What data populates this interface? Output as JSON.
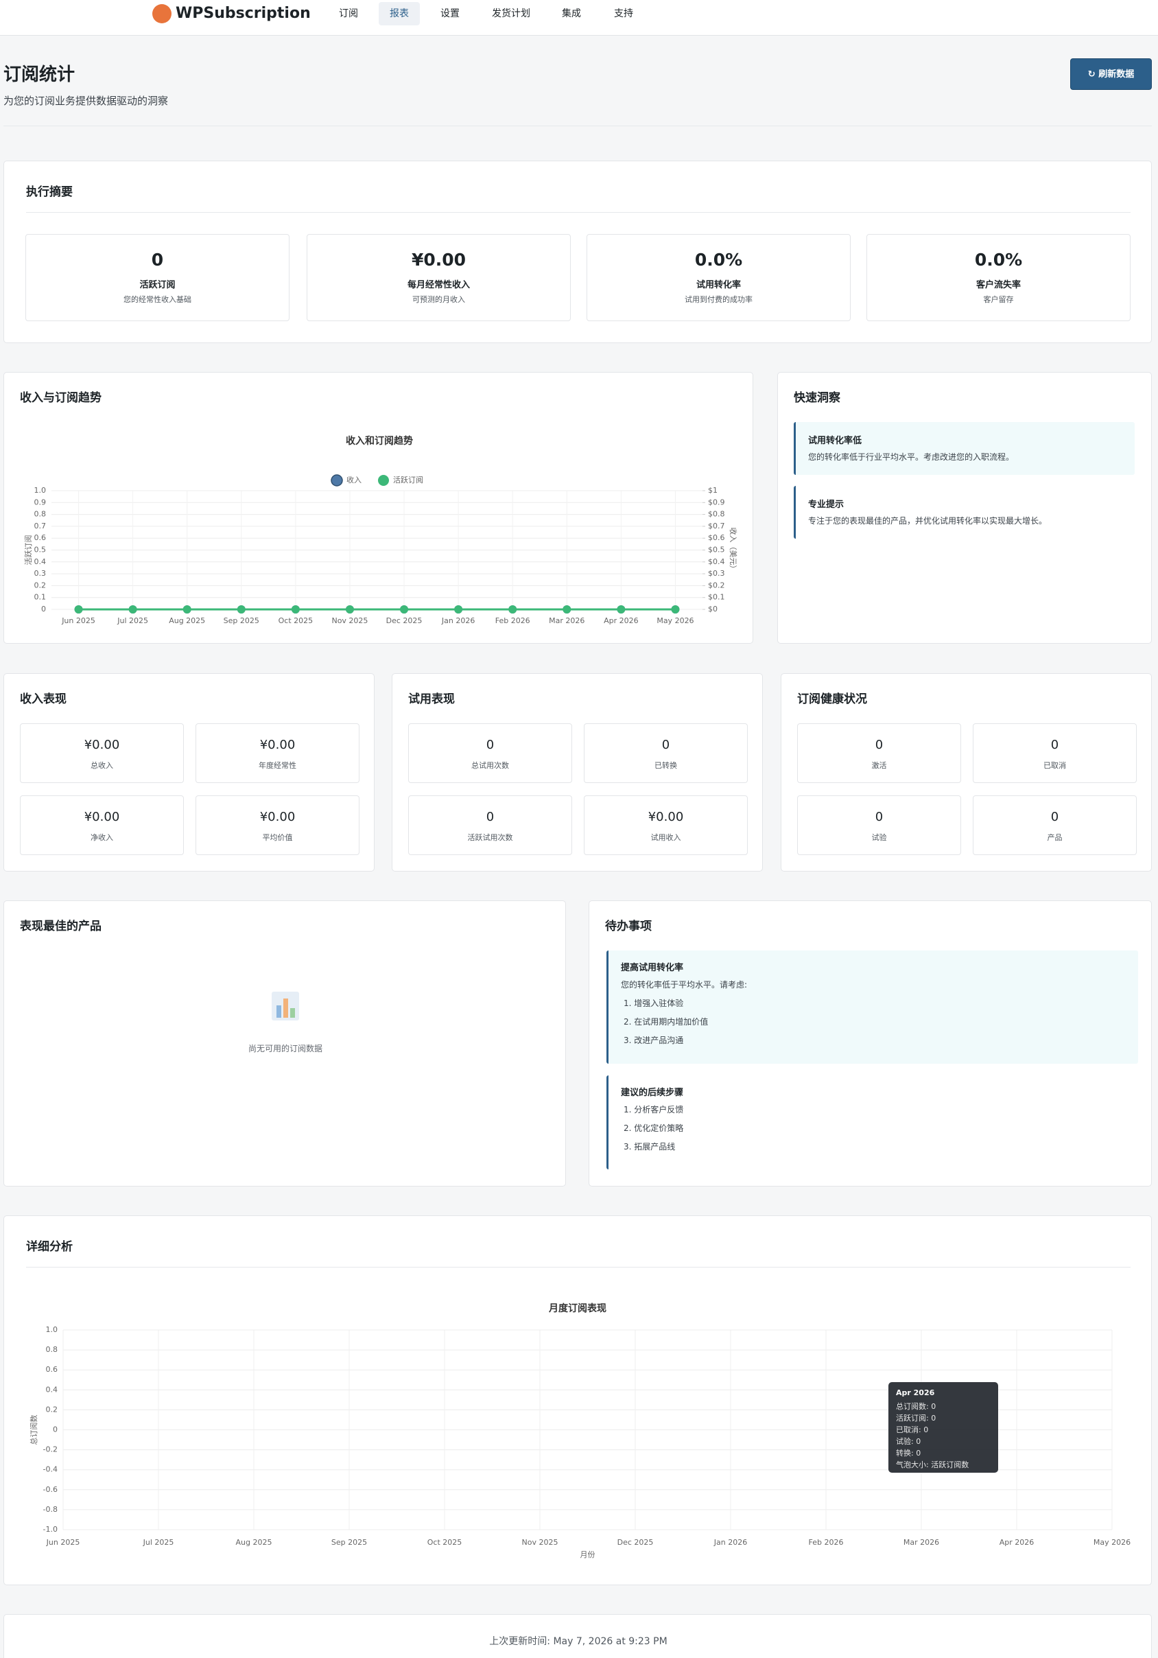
{
  "nav": {
    "brand": "WPSubscription",
    "items": [
      "订阅",
      "报表",
      "设置",
      "发货计划",
      "集成",
      "支持"
    ],
    "active": 1
  },
  "header": {
    "title": "订阅统计",
    "subtitle": "为您的订阅业务提供数据驱动的洞察",
    "button": "↻ 刷新数据"
  },
  "summary": {
    "title": "执行摘要",
    "cards": [
      {
        "value": "0",
        "label": "活跃订阅",
        "note": "您的经常性收入基础"
      },
      {
        "value": "¥0.00",
        "label": "每月经常性收入",
        "note": "可预测的月收入"
      },
      {
        "value": "0.0%",
        "label": "试用转化率",
        "note": "试用到付费的成功率"
      },
      {
        "value": "0.0%",
        "label": "客户流失率",
        "note": "客户留存"
      }
    ]
  },
  "trend": {
    "title": "收入与订阅趋势"
  },
  "insights": {
    "title": "快速洞察",
    "items": [
      {
        "title": "试用转化率低",
        "text": "您的转化率低于行业平均水平。考虑改进您的入职流程。"
      },
      {
        "title": "专业提示",
        "text": "专注于您的表现最佳的产品，并优化试用转化率以实现最大增长。"
      }
    ]
  },
  "panels": [
    {
      "title": "收入表现",
      "stats": [
        {
          "value": "¥0.00",
          "label": "总收入"
        },
        {
          "value": "¥0.00",
          "label": "年度经常性"
        },
        {
          "value": "¥0.00",
          "label": "净收入"
        },
        {
          "value": "¥0.00",
          "label": "平均价值"
        }
      ]
    },
    {
      "title": "试用表现",
      "stats": [
        {
          "value": "0",
          "label": "总试用次数"
        },
        {
          "value": "0",
          "label": "已转换"
        },
        {
          "value": "0",
          "label": "活跃试用次数"
        },
        {
          "value": "¥0.00",
          "label": "试用收入"
        }
      ]
    },
    {
      "title": "订阅健康状况",
      "stats": [
        {
          "value": "0",
          "label": "激活"
        },
        {
          "value": "0",
          "label": "已取消"
        },
        {
          "value": "0",
          "label": "试验"
        },
        {
          "value": "0",
          "label": "产品"
        }
      ]
    }
  ],
  "top_products": {
    "title": "表现最佳的产品",
    "empty": "尚无可用的订阅数据"
  },
  "todo": {
    "title": "待办事项",
    "items": [
      {
        "title": "提高试用转化率",
        "text": "您的转化率低于平均水平。请考虑:",
        "steps": [
          "1. 增强入驻体验",
          "2. 在试用期内增加价值",
          "3. 改进产品沟通"
        ]
      },
      {
        "title": "建议的后续步骤",
        "steps": [
          "1. 分析客户反馈",
          "2. 优化定价策略",
          "3. 拓展产品线"
        ]
      }
    ]
  },
  "detail": {
    "title": "详细分析"
  },
  "footer": {
    "label": "上次更新时间:",
    "time": "May 7, 2026 at 9:23 PM"
  },
  "chart_data": [
    {
      "type": "line",
      "title": "收入和订阅趋势",
      "legend": "top",
      "categories": [
        "Jun 2025",
        "Jul 2025",
        "Aug 2025",
        "Sep 2025",
        "Oct 2025",
        "Nov 2025",
        "Dec 2025",
        "Jan 2026",
        "Feb 2026",
        "Mar 2026",
        "Apr 2026",
        "May 2026"
      ],
      "series": [
        {
          "name": "收入",
          "color": "#4e79a7",
          "axis": "y2",
          "values": [
            0,
            0,
            0,
            0,
            0,
            0,
            0,
            0,
            0,
            0,
            0,
            0
          ]
        },
        {
          "name": "活跃订阅",
          "color": "#3cb878",
          "values": [
            0,
            0,
            0,
            0,
            0,
            0,
            0,
            0,
            0,
            0,
            0,
            0
          ]
        }
      ],
      "ylabel": "活跃订阅",
      "y2label": "收入（美元）",
      "ylim": [
        0,
        1
      ],
      "yticks": [
        0,
        0.1,
        0.2,
        0.3,
        0.4,
        0.5,
        0.6,
        0.7,
        0.8,
        0.9,
        {
          "value": 1,
          "label": "1.0"
        }
      ],
      "y2lim": [
        0,
        1
      ],
      "y2ticks": [
        {
          "value": 0,
          "label": "$0"
        },
        {
          "value": 0.1,
          "label": "$0.1"
        },
        {
          "value": 0.2,
          "label": "$0.2"
        },
        {
          "value": 0.3,
          "label": "$0.3"
        },
        {
          "value": 0.4,
          "label": "$0.4"
        },
        {
          "value": 0.5,
          "label": "$0.5"
        },
        {
          "value": 0.6,
          "label": "$0.6"
        },
        {
          "value": 0.7,
          "label": "$0.7"
        },
        {
          "value": 0.8,
          "label": "$0.8"
        },
        {
          "value": 0.9,
          "label": "$0.9"
        },
        {
          "value": 1,
          "label": "$1"
        }
      ],
      "grid": true
    },
    {
      "type": "bubble",
      "title": "月度订阅表现",
      "xlabel": "月份",
      "ylabel": "总订阅数",
      "categories": [
        "Jun 2025",
        "Jul 2025",
        "Aug 2025",
        "Sep 2025",
        "Oct 2025",
        "Nov 2025",
        "Dec 2025",
        "Jan 2026",
        "Feb 2026",
        "Mar 2026",
        "Apr 2026",
        "May 2026"
      ],
      "ylim": [
        -1,
        1
      ],
      "yticks": [
        {
          "value": -1,
          "label": "-1.0"
        },
        -0.8,
        -0.6,
        -0.4,
        -0.2,
        0,
        0.2,
        0.4,
        0.6,
        0.8,
        {
          "value": 1,
          "label": "1.0"
        }
      ],
      "grid": true,
      "tooltip": {
        "title": "Apr 2026",
        "lines": [
          "总订阅数: 0",
          "活跃订阅: 0",
          "已取消: 0",
          "试验: 0",
          "转换: 0",
          "气泡大小: 活跃订阅数"
        ]
      }
    }
  ]
}
